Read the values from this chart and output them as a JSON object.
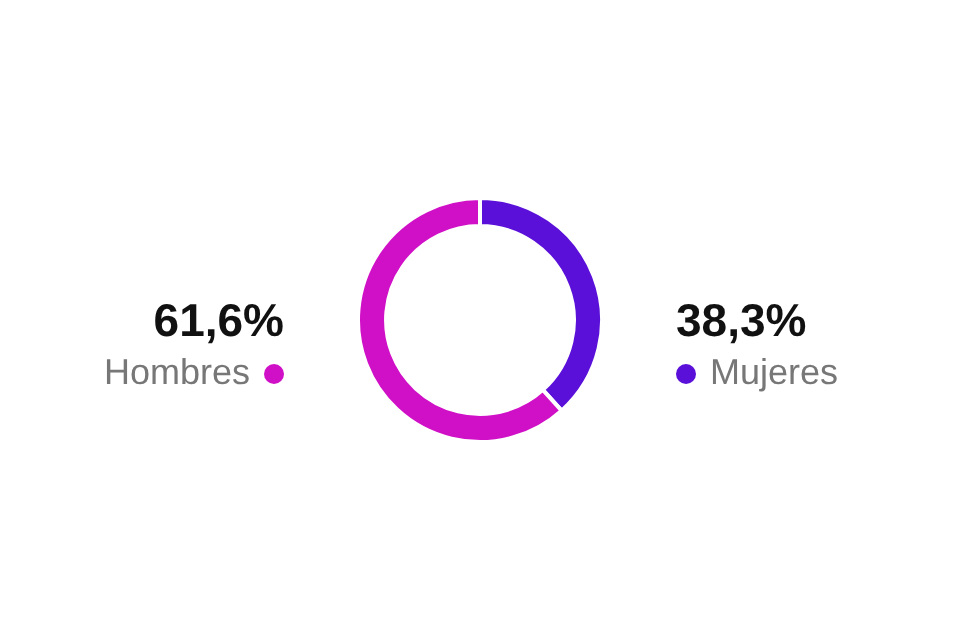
{
  "chart_data": {
    "type": "donut",
    "categories": [
      "Mujeres",
      "Hombres"
    ],
    "values": [
      38.3,
      61.6
    ],
    "colors": [
      "#5a10d8",
      "#d010c6"
    ],
    "value_labels": [
      "38,3%",
      "61,6%"
    ]
  }
}
